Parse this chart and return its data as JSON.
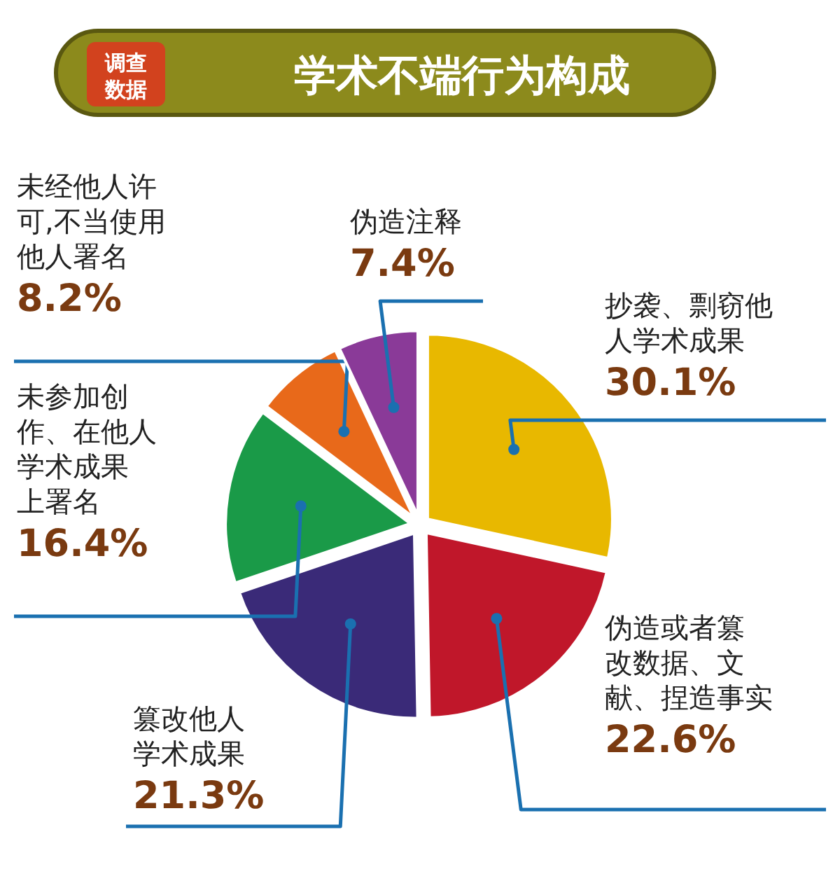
{
  "chart_data": {
    "type": "pie",
    "title": "学术不端行为构成",
    "subtitle": "调查数据",
    "categories": [
      "抄袭、剽窃他人学术成果",
      "伪造或者篡改数据、文献、捏造事实",
      "篡改他人学术成果",
      "未参加创作、在他人学术成果上署名",
      "未经他人许可,不当使用他人署名",
      "伪造注释"
    ],
    "values": [
      30.1,
      22.6,
      21.3,
      16.4,
      8.2,
      7.4
    ],
    "colors": [
      "#e8b800",
      "#c0172a",
      "#3a2a78",
      "#1a9a48",
      "#e8691a",
      "#8a3a98"
    ],
    "value_labels": [
      "30.1%",
      "22.6%",
      "21.3%",
      "16.4%",
      "8.2%",
      "7.4%"
    ]
  }
}
